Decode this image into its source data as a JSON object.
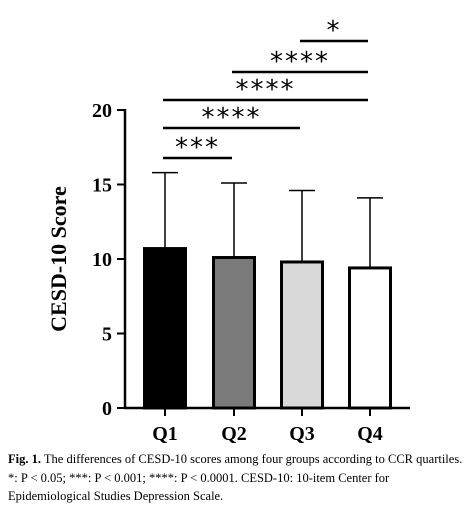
{
  "chart_data": {
    "type": "bar",
    "categories": [
      "Q1",
      "Q2",
      "Q3",
      "Q4"
    ],
    "values": [
      10.7,
      10.1,
      9.8,
      9.4
    ],
    "error_upper": [
      15.8,
      15.1,
      14.6,
      14.1
    ],
    "colors": [
      "#000000",
      "#7a7a7a",
      "#d9d9d9",
      "#ffffff"
    ],
    "ylabel": "CESD-10 Score",
    "ylim": [
      0,
      20
    ],
    "yticks": [
      "0",
      "5",
      "10",
      "15",
      "20"
    ],
    "grid": false,
    "significance": [
      {
        "from": "Q1",
        "to": "Q2",
        "label": "***"
      },
      {
        "from": "Q1",
        "to": "Q3",
        "label": "****"
      },
      {
        "from": "Q1",
        "to": "Q4",
        "label": "****"
      },
      {
        "from": "Q2",
        "to": "Q4",
        "label": "****"
      },
      {
        "from": "Q3",
        "to": "Q4",
        "label": "*"
      }
    ]
  },
  "caption": {
    "label": "Fig. 1.",
    "text": "The differences of CESD-10 scores among four groups according to CCR quartiles. *: P < 0.05; ***: P < 0.001; ****: P < 0.0001. CESD-10: 10-item Center for Epidemiological Studies Depression Scale."
  }
}
